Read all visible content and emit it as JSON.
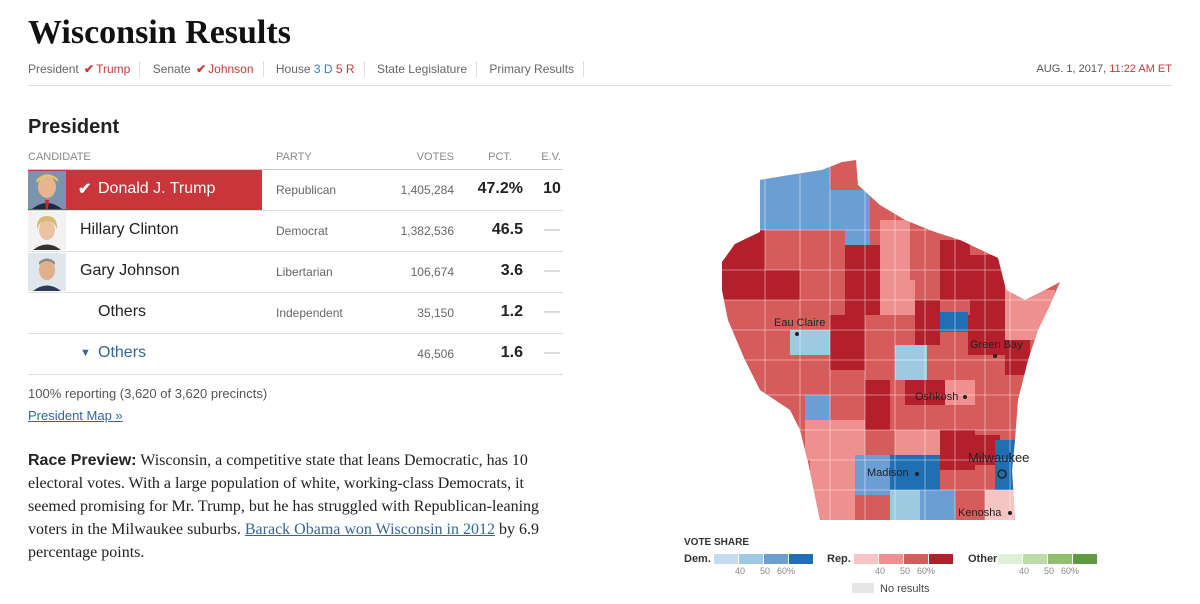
{
  "page": {
    "title": "Wisconsin Results",
    "timestamp_date": "AUG. 1, 2017,",
    "timestamp_time": "11:22 AM ET"
  },
  "nav": {
    "president_label": "President",
    "president_winner": "Trump",
    "senate_label": "Senate",
    "senate_winner": "Johnson",
    "house_label": "House",
    "house_dem": "3 D",
    "house_rep": "5 R",
    "legislature_label": "State Legislature",
    "primary_label": "Primary Results"
  },
  "president": {
    "section_title": "President",
    "headers": {
      "candidate": "CANDIDATE",
      "party": "PARTY",
      "votes": "VOTES",
      "pct": "PCT.",
      "ev": "E.V."
    },
    "rows": [
      {
        "name": "Donald J. Trump",
        "party": "Republican",
        "votes": "1,405,284",
        "pct": "47.2%",
        "ev": "10"
      },
      {
        "name": "Hillary Clinton",
        "party": "Democrat",
        "votes": "1,382,536",
        "pct": "46.5",
        "ev": "—"
      },
      {
        "name": "Gary Johnson",
        "party": "Libertarian",
        "votes": "106,674",
        "pct": "3.6",
        "ev": "—"
      },
      {
        "name": "Others",
        "party": "Independent",
        "votes": "35,150",
        "pct": "1.2",
        "ev": "—"
      },
      {
        "name": "Others",
        "party": "",
        "votes": "46,506",
        "pct": "1.6",
        "ev": "—"
      }
    ],
    "reporting": "100% reporting (3,620 of 3,620 precincts)",
    "map_link": "President Map »"
  },
  "preview": {
    "label": "Race Preview:",
    "text": "Wisconsin, a competitive state that leans Democratic, has 10 electoral votes. With a large population of white, working-class Democrats, it seemed promising for Mr. Trump, but he has struggled with Republican-leaning voters in the Milwaukee suburbs.",
    "link_text": "Barack Obama won Wisconsin in 2012",
    "tail": "by 6.9 percentage points."
  },
  "map": {
    "cities": {
      "eau_claire": "Eau Claire",
      "green_bay": "Green Bay",
      "oshkosh": "Oshkosh",
      "madison": "Madison",
      "milwaukee": "Milwaukee",
      "kenosha": "Kenosha"
    }
  },
  "legend": {
    "title": "VOTE SHARE",
    "dem_label": "Dem.",
    "rep_label": "Rep.",
    "other_label": "Other",
    "ticks": [
      "40",
      "50",
      "60%"
    ],
    "no_results": "No results",
    "dem_colors": [
      "#c6dbef",
      "#9ecae1",
      "#6b9fd4",
      "#1f6fb5"
    ],
    "rep_colors": [
      "#f7c4c4",
      "#ef9090",
      "#d65c5c",
      "#b3202c"
    ],
    "other_colors": [
      "#e0f0d6",
      "#bddba6",
      "#8fbf6f",
      "#5f9a3f"
    ]
  }
}
